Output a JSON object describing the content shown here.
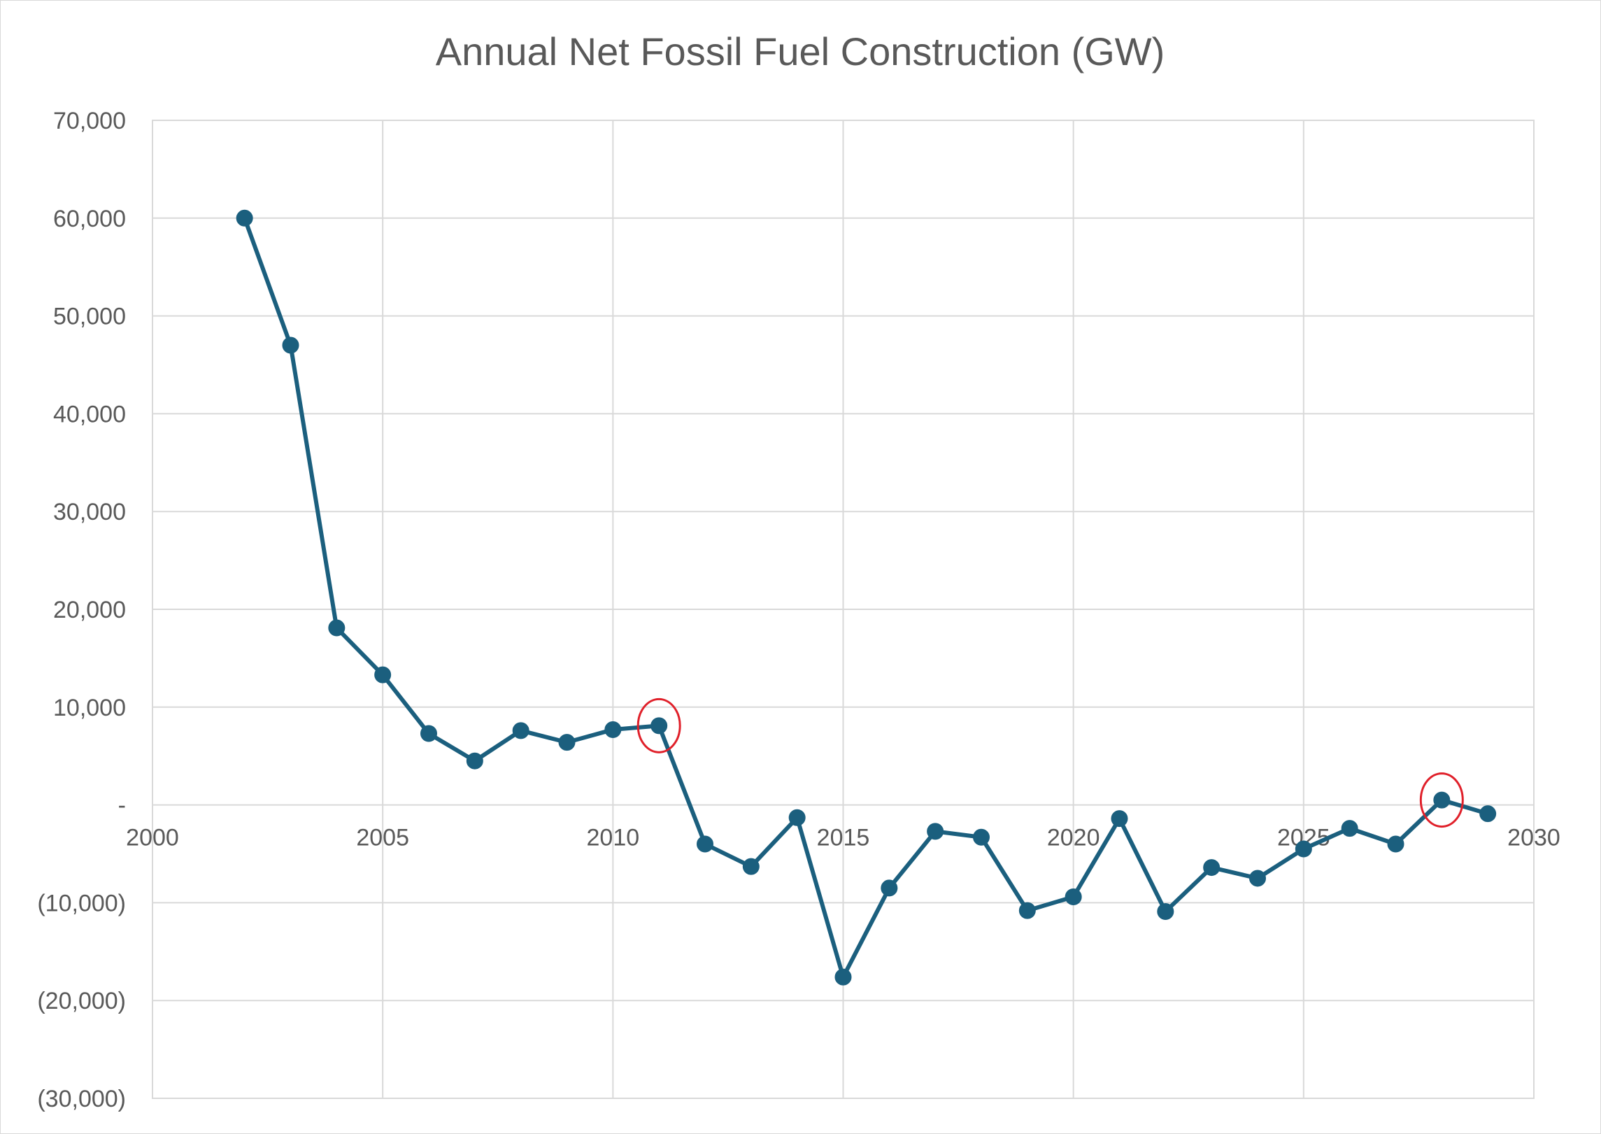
{
  "chart_data": {
    "type": "scatter",
    "mode": "lines+markers",
    "title": "Annual Net Fossil Fuel Construction (GW)",
    "xlabel": "",
    "ylabel": "",
    "xlim": [
      2000,
      2030
    ],
    "ylim": [
      -30000,
      70000
    ],
    "x_ticks": [
      2000,
      2005,
      2010,
      2015,
      2020,
      2025,
      2030
    ],
    "x_tick_labels": [
      "2000",
      "2005",
      "2010",
      "2015",
      "2020",
      "2025",
      "2030"
    ],
    "y_ticks": [
      70000,
      60000,
      50000,
      40000,
      30000,
      20000,
      10000,
      0,
      -10000,
      -20000,
      -30000
    ],
    "y_tick_labels": [
      "70,000",
      "60,000",
      "50,000",
      "40,000",
      "30,000",
      "20,000",
      "10,000",
      "-",
      "(10,000)",
      "(20,000)",
      "(30,000)"
    ],
    "grid": true,
    "legend": "none",
    "colors": {
      "series": "#1b5f7e",
      "highlight": "#e0202a",
      "grid": "#d9d9d9",
      "text": "#595959"
    },
    "series": [
      {
        "x": [
          2002,
          2003,
          2004,
          2005,
          2006,
          2007,
          2008,
          2009,
          2010,
          2011,
          2012,
          2013,
          2014,
          2015,
          2016,
          2017,
          2018,
          2019,
          2020,
          2021,
          2022,
          2023,
          2024,
          2025,
          2026,
          2027,
          2028,
          2029
        ],
        "y": [
          60000,
          47000,
          18100,
          13300,
          7300,
          4500,
          7600,
          6400,
          7700,
          8100,
          -4000,
          -6300,
          -1300,
          -17600,
          -8500,
          -2700,
          -3300,
          -10800,
          -9400,
          -1400,
          -10900,
          -6400,
          -7500,
          -4500,
          -2400,
          -4000,
          500,
          -900
        ]
      }
    ],
    "annotations": [
      {
        "type": "circle",
        "x": 2011,
        "y": 8100
      },
      {
        "type": "circle",
        "x": 2028,
        "y": 500
      }
    ]
  }
}
